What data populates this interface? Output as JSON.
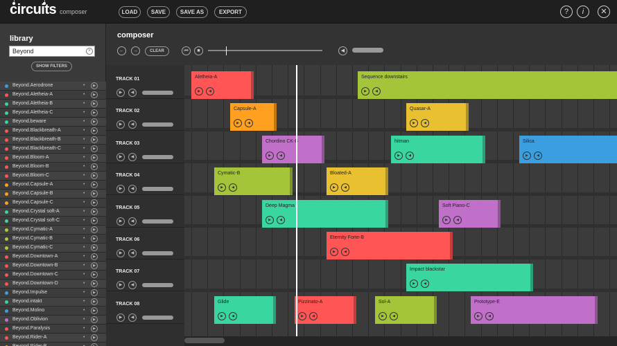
{
  "app": {
    "logo": "circuits",
    "subtitle": "composer"
  },
  "toolbar": {
    "load": "LOAD",
    "save": "SAVE",
    "save_as": "SAVE AS",
    "export": "EXPORT"
  },
  "topright": {
    "help": "?",
    "info": "i",
    "close": "✕"
  },
  "library": {
    "title": "library",
    "search_value": "Beyond",
    "show_filters": "SHOW FILTERS",
    "items": [
      {
        "name": "Beyond.Aerodrone",
        "color": "#3a9ee0"
      },
      {
        "name": "Beyond.Aletheia-A",
        "color": "#ff5555"
      },
      {
        "name": "Beyond.Aletheia-B",
        "color": "#3ad6a0"
      },
      {
        "name": "Beyond.Aletheia-C",
        "color": "#3ad6a0"
      },
      {
        "name": "Beyond.beware",
        "color": "#3ad6a0"
      },
      {
        "name": "Beyond.Blackbreath-A",
        "color": "#ff5555"
      },
      {
        "name": "Beyond.Blackbreath-B",
        "color": "#ff5555"
      },
      {
        "name": "Beyond.Blackbreath-C",
        "color": "#ff5555"
      },
      {
        "name": "Beyond.Bloom-A",
        "color": "#ff5555"
      },
      {
        "name": "Beyond.Bloom-B",
        "color": "#ff5555"
      },
      {
        "name": "Beyond.Bloom-C",
        "color": "#ff5555"
      },
      {
        "name": "Beyond.Capsule-A",
        "color": "#ffa020"
      },
      {
        "name": "Beyond.Capsule-B",
        "color": "#ffa020"
      },
      {
        "name": "Beyond.Capsule-C",
        "color": "#ffa020"
      },
      {
        "name": "Beyond.Crystal soft-A",
        "color": "#3ad6a0"
      },
      {
        "name": "Beyond.Crystal soft-C",
        "color": "#3ad6a0"
      },
      {
        "name": "Beyond.Cymatic-A",
        "color": "#a8cc3a"
      },
      {
        "name": "Beyond.Cymatic-B",
        "color": "#a8cc3a"
      },
      {
        "name": "Beyond.Cymatic-C",
        "color": "#a8cc3a"
      },
      {
        "name": "Beyond.Downtown-A",
        "color": "#ff5555"
      },
      {
        "name": "Beyond.Downtown-B",
        "color": "#ff5555"
      },
      {
        "name": "Beyond.Downtown-C",
        "color": "#ff5555"
      },
      {
        "name": "Beyond.Downtown-D",
        "color": "#ff5555"
      },
      {
        "name": "Beyond.Impulse",
        "color": "#3a9ee0"
      },
      {
        "name": "Beyond.intakt",
        "color": "#3ad6a0"
      },
      {
        "name": "Beyond.Molino",
        "color": "#3a9ee0"
      },
      {
        "name": "Beyond.Oblivion",
        "color": "#c070c8"
      },
      {
        "name": "Beyond.Paralysis",
        "color": "#ff5555"
      },
      {
        "name": "Beyond.Rider-A",
        "color": "#ff5555"
      },
      {
        "name": "Beyond.Rider-B",
        "color": "#ffa020"
      }
    ]
  },
  "composer": {
    "title": "composer",
    "clear": "CLEAR"
  },
  "tracks": [
    {
      "label": "TRACK 01"
    },
    {
      "label": "TRACK 02"
    },
    {
      "label": "TRACK 03"
    },
    {
      "label": "TRACK 04"
    },
    {
      "label": "TRACK 05"
    },
    {
      "label": "TRACK 06"
    },
    {
      "label": "TRACK 07"
    },
    {
      "label": "TRACK 08"
    }
  ],
  "clips": [
    {
      "track": 0,
      "name": "Aletheia-A",
      "color": "#ff5555",
      "start": 0,
      "len": 90
    },
    {
      "track": 0,
      "name": "Sequence downstairs",
      "color": "#a4c43a",
      "start": 240,
      "len": 384
    },
    {
      "track": 1,
      "name": "Capsule-A",
      "color": "#ffa020",
      "start": 56,
      "len": 67
    },
    {
      "track": 1,
      "name": "Quasar-A",
      "color": "#e8c030",
      "start": 310,
      "len": 90
    },
    {
      "track": 2,
      "name": "Chordino CK-B",
      "color": "#c070c8",
      "start": 102,
      "len": 90
    },
    {
      "track": 2,
      "name": "hitman",
      "color": "#3ad6a0",
      "start": 288,
      "len": 136
    },
    {
      "track": 2,
      "name": "Silica",
      "color": "#3a9ee0",
      "start": 473,
      "len": 151
    },
    {
      "track": 3,
      "name": "Cymatic-B",
      "color": "#a4c43a",
      "start": 33,
      "len": 113
    },
    {
      "track": 3,
      "name": "Bloated-A",
      "color": "#e8c030",
      "start": 195,
      "len": 89
    },
    {
      "track": 4,
      "name": "Deep Magma",
      "color": "#3ad6a0",
      "start": 102,
      "len": 182
    },
    {
      "track": 4,
      "name": "Soft Piano-C",
      "color": "#c070c8",
      "start": 357,
      "len": 89
    },
    {
      "track": 5,
      "name": "Eternity Forte-B",
      "color": "#ff5555",
      "start": 195,
      "len": 182
    },
    {
      "track": 6,
      "name": "Impact blackstar",
      "color": "#3ad6a0",
      "start": 310,
      "len": 183
    },
    {
      "track": 7,
      "name": "Glide",
      "color": "#3ad6a0",
      "start": 33,
      "len": 89
    },
    {
      "track": 7,
      "name": "Pizzinato-A",
      "color": "#ff5555",
      "start": 149,
      "len": 89
    },
    {
      "track": 7,
      "name": "Sol-A",
      "color": "#a4c43a",
      "start": 265,
      "len": 89
    },
    {
      "track": 7,
      "name": "Prototype-E",
      "color": "#c070c8",
      "start": 403,
      "len": 183
    }
  ]
}
